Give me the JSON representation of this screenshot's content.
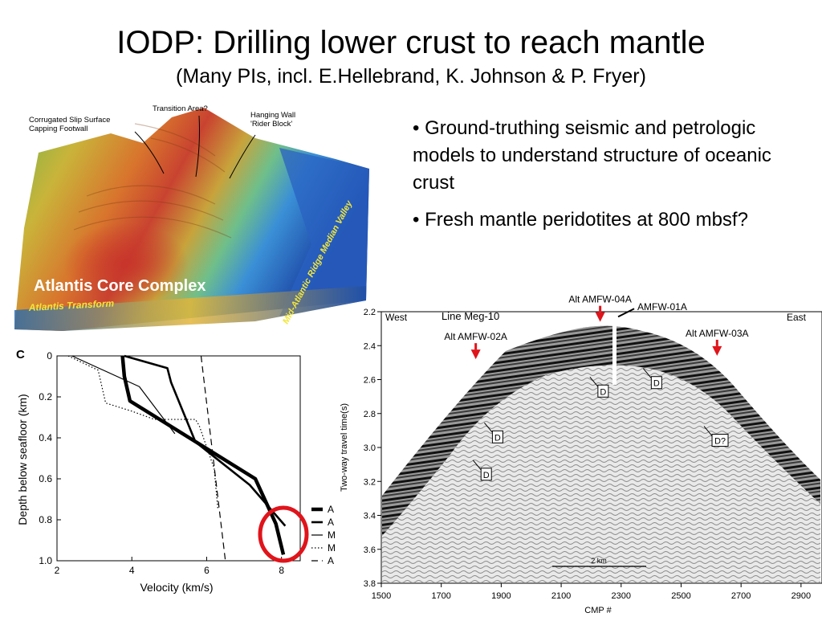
{
  "slide": {
    "title": "IODP: Drilling lower crust to reach mantle",
    "subtitle": "(Many PIs, incl. E.Hellebrand, K. Johnson & P. Fryer)",
    "bullets": [
      "• Ground-truthing seismic and petrologic models to understand structure of oceanic crust",
      "• Fresh mantle peridotites at 800 mbsf?"
    ]
  },
  "terrain_figure": {
    "labels": {
      "corrugated": "Corrugated Slip Surface",
      "capping": "Capping Footwall",
      "transition": "Transition Area?",
      "hanging_wall": "Hanging Wall",
      "rider_block": "'Rider Block'",
      "median_valley": "Mid-Atlantic Ridge Median Valley",
      "core_complex": "Atlantis Core Complex",
      "transform": "Atlantis Transform"
    },
    "colors": {
      "high": "#cc3a26",
      "mid": "#d9b830",
      "low": "#3a8fd6",
      "deep": "#1a3fa0"
    }
  },
  "chart_data": [
    {
      "type": "line",
      "panel_label": "C",
      "xlabel": "Velocity (km/s)",
      "ylabel": "Depth below seafloor (km)",
      "xlim": [
        2,
        8.5
      ],
      "ylim": [
        0,
        1.0
      ],
      "y_inverted": true,
      "xticks": [
        "2",
        "4",
        "6",
        "8"
      ],
      "yticks": [
        "0",
        "0.2",
        "0.4",
        "0.6",
        "0.8",
        "1.0"
      ],
      "legend_labels": [
        "A",
        "A",
        "M",
        "M",
        "A"
      ],
      "series": [
        {
          "style": "thick",
          "x": [
            3.75,
            3.8,
            3.95,
            7.3,
            7.85,
            8.05
          ],
          "y": [
            0,
            0.1,
            0.22,
            0.6,
            0.82,
            0.97
          ]
        },
        {
          "style": "medium",
          "x": [
            3.8,
            4.95,
            5.05,
            5.7,
            7.15,
            8.1
          ],
          "y": [
            0,
            0.06,
            0.13,
            0.42,
            0.63,
            0.83
          ]
        },
        {
          "style": "thin",
          "x": [
            2.4,
            4.2,
            5.15
          ],
          "y": [
            0,
            0.15,
            0.38
          ]
        },
        {
          "style": "dotted",
          "x": [
            2.3,
            3.1,
            3.3,
            4.0,
            4.6,
            5.7,
            5.8,
            6.2,
            6.3
          ],
          "y": [
            0,
            0.07,
            0.23,
            0.27,
            0.31,
            0.31,
            0.34,
            0.55,
            0.75
          ]
        },
        {
          "style": "dashed",
          "x": [
            5.85,
            6.5
          ],
          "y": [
            0,
            1.0
          ]
        }
      ],
      "highlight": "red ellipse around the 0.75–0.97 km depth interval near 8 km/s",
      "colors": {
        "highlight": "#e0141b"
      }
    },
    {
      "type": "heatmap",
      "title": "Line Meg-10",
      "xlabel": "CMP #",
      "ylabel": "Two-way travel time(s)",
      "xticks": [
        "1500",
        "1700",
        "1900",
        "2100",
        "2300",
        "2500",
        "2700",
        "2900"
      ],
      "yticks": [
        "2.2",
        "2.4",
        "2.6",
        "2.8",
        "3.0",
        "3.2",
        "3.4",
        "3.6",
        "3.8"
      ],
      "xlim": [
        1500,
        2970
      ],
      "ylim": [
        2.2,
        3.8
      ],
      "directions": [
        "West",
        "East"
      ],
      "scale_bar": "2 km",
      "sites": [
        {
          "label": "Alt AMFW-02A",
          "cmp": 1815,
          "twt": 2.48,
          "marker": "red-arrow"
        },
        {
          "label": "Alt AMFW-04A",
          "cmp": 2230,
          "twt": 2.26,
          "marker": "red-arrow"
        },
        {
          "label": "AMFW-01A",
          "cmp": 2290,
          "twt": 2.22,
          "marker": "borehole"
        },
        {
          "label": "Alt AMFW-03A",
          "cmp": 2620,
          "twt": 2.46,
          "marker": "red-arrow"
        }
      ],
      "d_markers": [
        {
          "label": "D",
          "cmp": 2240,
          "twt": 2.67
        },
        {
          "label": "D",
          "cmp": 2418,
          "twt": 2.62
        },
        {
          "label": "D",
          "cmp": 1888,
          "twt": 2.94
        },
        {
          "label": "D?",
          "cmp": 2630,
          "twt": 2.96
        },
        {
          "label": "D",
          "cmp": 1850,
          "twt": 3.16
        }
      ],
      "colors": {
        "site_arrow": "#e0141b"
      }
    }
  ]
}
